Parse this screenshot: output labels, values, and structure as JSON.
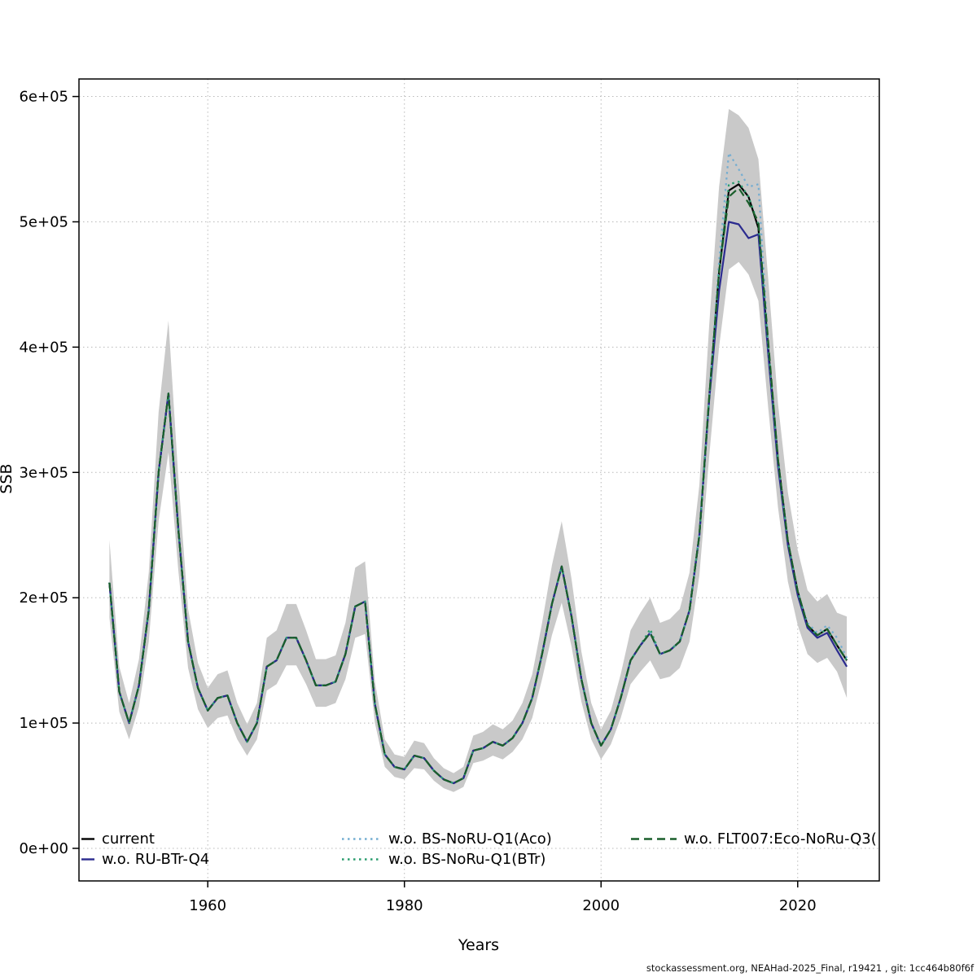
{
  "footer": {
    "source_note": "stockassessment.org, NEAHad-2025_Final, r19421 , git: 1cc464b80f6f"
  },
  "chart_data": {
    "type": "line",
    "title": "",
    "xlabel": "Years",
    "ylabel": "SSB",
    "grid": true,
    "legend_position": "bottom-inside",
    "xlim": [
      1946.9,
      2028.3
    ],
    "ylim": [
      -26000,
      614000
    ],
    "x_ticks": [
      1960,
      1980,
      2000,
      2020
    ],
    "x_tick_labels": [
      "1960",
      "1980",
      "2000",
      "2020"
    ],
    "y_ticks": [
      0,
      100000,
      200000,
      300000,
      400000,
      500000,
      600000
    ],
    "y_tick_labels": [
      "0e+00",
      "1e+05",
      "2e+05",
      "3e+05",
      "4e+05",
      "5e+05",
      "6e+05"
    ],
    "years": [
      1950,
      1951,
      1952,
      1953,
      1954,
      1955,
      1956,
      1957,
      1958,
      1959,
      1960,
      1961,
      1962,
      1963,
      1964,
      1965,
      1966,
      1967,
      1968,
      1969,
      1970,
      1971,
      1972,
      1973,
      1974,
      1975,
      1976,
      1977,
      1978,
      1979,
      1980,
      1981,
      1982,
      1983,
      1984,
      1985,
      1986,
      1987,
      1988,
      1989,
      1990,
      1991,
      1992,
      1993,
      1994,
      1995,
      1996,
      1997,
      1998,
      1999,
      2000,
      2001,
      2002,
      2003,
      2004,
      2005,
      2006,
      2007,
      2008,
      2009,
      2010,
      2011,
      2012,
      2013,
      2014,
      2015,
      2016,
      2017,
      2018,
      2019,
      2020,
      2021,
      2022,
      2023,
      2024,
      2025
    ],
    "band": {
      "color": "#c9c9c9",
      "lower": [
        184000,
        109000,
        87000,
        113000,
        165000,
        261000,
        316000,
        222000,
        144000,
        111000,
        96000,
        104000,
        106000,
        87000,
        74000,
        87000,
        126000,
        131000,
        146000,
        146000,
        131000,
        113000,
        113000,
        116000,
        135000,
        168000,
        171000,
        100000,
        65000,
        57000,
        55000,
        64000,
        63000,
        54000,
        48000,
        45000,
        49000,
        68000,
        70000,
        74000,
        71000,
        77000,
        87000,
        104000,
        135000,
        170000,
        196000,
        161000,
        117000,
        87000,
        71000,
        83000,
        104000,
        131000,
        141000,
        150000,
        135000,
        137000,
        144000,
        165000,
        218000,
        313000,
        400000,
        462000,
        468000,
        458000,
        437000,
        352000,
        272000,
        213000,
        178000,
        155000,
        148000,
        152000,
        141000,
        120000
      ],
      "upper": [
        246000,
        145000,
        116000,
        151000,
        220000,
        348000,
        421000,
        296000,
        191000,
        148000,
        128000,
        139000,
        142000,
        116000,
        99000,
        116000,
        168000,
        174000,
        195000,
        195000,
        174000,
        151000,
        151000,
        154000,
        180000,
        224000,
        229000,
        133000,
        87000,
        75000,
        73000,
        86000,
        84000,
        72000,
        64000,
        60000,
        65000,
        90000,
        93000,
        99000,
        95000,
        102000,
        116000,
        139000,
        180000,
        226000,
        261000,
        215000,
        157000,
        116000,
        95000,
        110000,
        139000,
        174000,
        188000,
        200000,
        180000,
        183000,
        191000,
        220000,
        290000,
        418000,
        528000,
        590000,
        585000,
        575000,
        550000,
        455000,
        355000,
        284000,
        238000,
        206000,
        197000,
        203000,
        188000,
        185000
      ]
    },
    "series": [
      {
        "name": "current",
        "color": "#000000",
        "dash": "solid",
        "values": [
          212000,
          125000,
          100000,
          130000,
          190000,
          300000,
          363000,
          255000,
          165000,
          128000,
          110000,
          120000,
          122000,
          100000,
          85000,
          100000,
          145000,
          150000,
          168000,
          168000,
          150000,
          130000,
          130000,
          133000,
          155000,
          193000,
          197000,
          115000,
          75000,
          65000,
          63000,
          74000,
          72000,
          62000,
          55000,
          52000,
          56000,
          78000,
          80000,
          85000,
          82000,
          88000,
          100000,
          120000,
          155000,
          195000,
          225000,
          185000,
          135000,
          100000,
          82000,
          95000,
          120000,
          150000,
          162000,
          172000,
          155000,
          158000,
          165000,
          190000,
          250000,
          360000,
          460000,
          525000,
          530000,
          520000,
          495000,
          400000,
          310000,
          245000,
          205000,
          178000,
          170000,
          175000,
          162000,
          150000
        ]
      },
      {
        "name": "w.o. RU-BTr-Q4",
        "color": "#2b2b8f",
        "dash": "solid",
        "values": [
          212000,
          125000,
          100000,
          130000,
          190000,
          300000,
          363000,
          255000,
          165000,
          128000,
          110000,
          120000,
          122000,
          100000,
          85000,
          100000,
          145000,
          150000,
          168000,
          168000,
          150000,
          130000,
          130000,
          133000,
          155000,
          193000,
          197000,
          115000,
          75000,
          65000,
          63000,
          74000,
          72000,
          62000,
          55000,
          52000,
          56000,
          78000,
          80000,
          85000,
          82000,
          88000,
          100000,
          120000,
          155000,
          195000,
          225000,
          185000,
          135000,
          100000,
          82000,
          95000,
          120000,
          150000,
          162000,
          172000,
          155000,
          158000,
          165000,
          190000,
          250000,
          358000,
          445000,
          500000,
          498000,
          487000,
          490000,
          395000,
          305000,
          242000,
          202000,
          176000,
          168000,
          172000,
          158000,
          145000
        ]
      },
      {
        "name": "w.o. BS-NoRU-Q1(Aco)",
        "color": "#74add1",
        "dash": "dotted",
        "values": [
          212000,
          125000,
          100000,
          130000,
          190000,
          300000,
          363000,
          255000,
          165000,
          128000,
          110000,
          120000,
          122000,
          100000,
          85000,
          100000,
          145000,
          150000,
          168000,
          168000,
          150000,
          130000,
          130000,
          133000,
          155000,
          193000,
          197000,
          115000,
          75000,
          65000,
          63000,
          74000,
          72000,
          62000,
          55000,
          52000,
          56000,
          78000,
          80000,
          85000,
          82000,
          88000,
          100000,
          120000,
          155000,
          195000,
          225000,
          185000,
          135000,
          100000,
          82000,
          95000,
          120000,
          150000,
          162000,
          172000,
          155000,
          158000,
          165000,
          190000,
          250000,
          360000,
          468000,
          555000,
          542000,
          528000,
          530000,
          402000,
          310000,
          245000,
          205000,
          180000,
          172000,
          178000,
          168000,
          152000
        ]
      },
      {
        "name": "w.o. BS-NoRu-Q1(BTr)",
        "color": "#2a9d6e",
        "dash": "dotted",
        "values": [
          212000,
          125000,
          100000,
          130000,
          190000,
          300000,
          363000,
          255000,
          165000,
          128000,
          110000,
          120000,
          122000,
          100000,
          85000,
          100000,
          145000,
          150000,
          168000,
          168000,
          150000,
          130000,
          130000,
          133000,
          155000,
          193000,
          197000,
          115000,
          75000,
          65000,
          63000,
          74000,
          72000,
          62000,
          55000,
          52000,
          56000,
          78000,
          80000,
          85000,
          82000,
          88000,
          100000,
          120000,
          155000,
          195000,
          225000,
          185000,
          135000,
          100000,
          82000,
          95000,
          120000,
          150000,
          162000,
          175000,
          155000,
          158000,
          165000,
          190000,
          250000,
          360000,
          460000,
          530000,
          532000,
          520000,
          498000,
          400000,
          310000,
          245000,
          205000,
          178000,
          170000,
          175000,
          162000,
          150000
        ]
      },
      {
        "name": "w.o. FLT007:Eco-NoRu-Q3(",
        "color": "#1a5e2b",
        "dash": "dashed",
        "values": [
          212000,
          125000,
          100000,
          130000,
          190000,
          300000,
          363000,
          255000,
          165000,
          128000,
          110000,
          120000,
          122000,
          100000,
          85000,
          100000,
          145000,
          150000,
          168000,
          168000,
          150000,
          130000,
          130000,
          133000,
          155000,
          193000,
          197000,
          115000,
          75000,
          65000,
          63000,
          74000,
          72000,
          62000,
          55000,
          52000,
          56000,
          78000,
          80000,
          85000,
          82000,
          88000,
          100000,
          120000,
          155000,
          195000,
          225000,
          185000,
          135000,
          100000,
          82000,
          95000,
          120000,
          150000,
          162000,
          172000,
          155000,
          158000,
          165000,
          190000,
          250000,
          360000,
          460000,
          520000,
          527000,
          515000,
          500000,
          405000,
          310000,
          245000,
          205000,
          178000,
          170000,
          175000,
          162000,
          150000
        ]
      }
    ]
  }
}
